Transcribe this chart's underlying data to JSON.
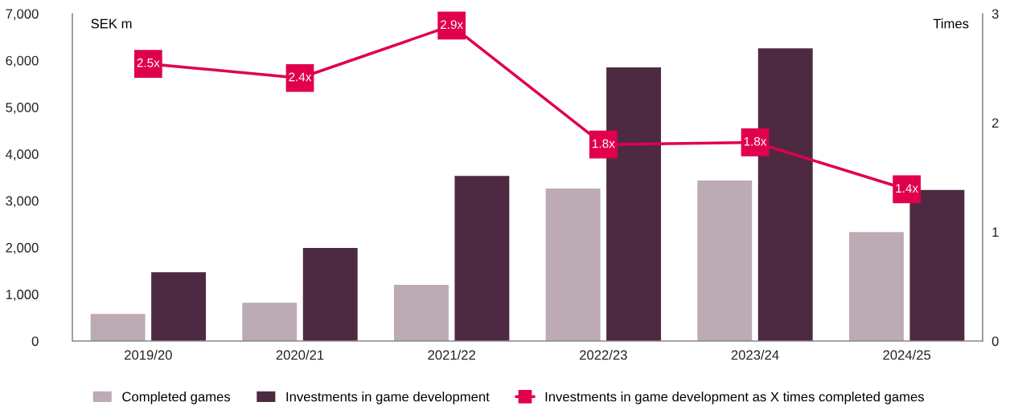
{
  "chart_data": {
    "type": "bar",
    "categories": [
      "2019/20",
      "2020/21",
      "2021/22",
      "2022/23",
      "2023/24",
      "2024/25"
    ],
    "ylabel": "SEK m",
    "y2label": "Times",
    "ylim": [
      0,
      7000
    ],
    "yticks": [
      0,
      {
        "value": 1000,
        "label": "1,000"
      },
      {
        "value": 2000,
        "label": "2,000"
      },
      {
        "value": 3000,
        "label": "3,000"
      },
      {
        "value": 4000,
        "label": "4,000"
      },
      {
        "value": 5000,
        "label": "5,000"
      },
      {
        "value": 6000,
        "label": "6,000"
      },
      {
        "value": 7000,
        "label": "7,000"
      }
    ],
    "y2lim": [
      0,
      3
    ],
    "y2ticks": [
      0,
      1,
      2,
      3
    ],
    "series": [
      {
        "name": "Completed games",
        "color": "#bcaab5",
        "values": [
          580,
          820,
          1200,
          3260,
          3430,
          2330
        ]
      },
      {
        "name": "Investments in game development",
        "color": "#4e2a42",
        "values": [
          1470,
          1990,
          3530,
          5850,
          6260,
          3230
        ]
      },
      {
        "name": "Investments in game development as X times completed games",
        "type": "line",
        "axis": "y2",
        "color": "#e0004d",
        "marker": "square",
        "values": [
          2.54,
          2.41,
          2.89,
          1.8,
          1.82,
          1.39
        ],
        "value_labels": [
          "2.5x",
          "2.4x",
          "2.9x",
          "1.8x",
          "1.8x",
          "1.4x"
        ]
      }
    ],
    "legend": "bottom",
    "grid": false
  }
}
